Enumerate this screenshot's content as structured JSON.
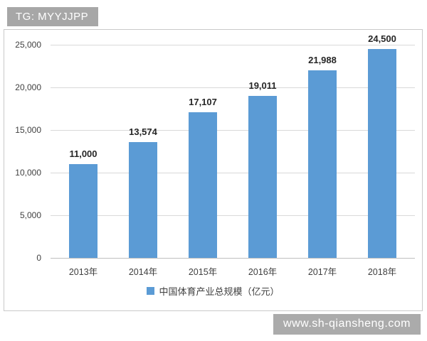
{
  "badge": {
    "text": "TG: MYYJJPP"
  },
  "watermark": {
    "text": "www.sh-qiansheng.com"
  },
  "colors": {
    "bar": "#5b9bd5",
    "badge_bg": "#a7a7a7",
    "watermark_bg": "#ababab",
    "gridline": "#d9d9d9",
    "text": "#404040"
  },
  "chart_data": {
    "type": "bar",
    "categories": [
      "2013年",
      "2014年",
      "2015年",
      "2016年",
      "2017年",
      "2018年"
    ],
    "values": [
      11000,
      13574,
      17107,
      19011,
      21988,
      24500
    ],
    "value_labels": [
      "11,000",
      "13,574",
      "17,107",
      "19,011",
      "21,988",
      "24,500"
    ],
    "y_ticks": [
      "0",
      "5,000",
      "10,000",
      "15,000",
      "20,000",
      "25,000"
    ],
    "ylim": [
      0,
      25000
    ],
    "title": "",
    "xlabel": "",
    "ylabel": "",
    "grid": true,
    "legend": "中国体育产业总规模（亿元）",
    "legend_position": "bottom"
  }
}
